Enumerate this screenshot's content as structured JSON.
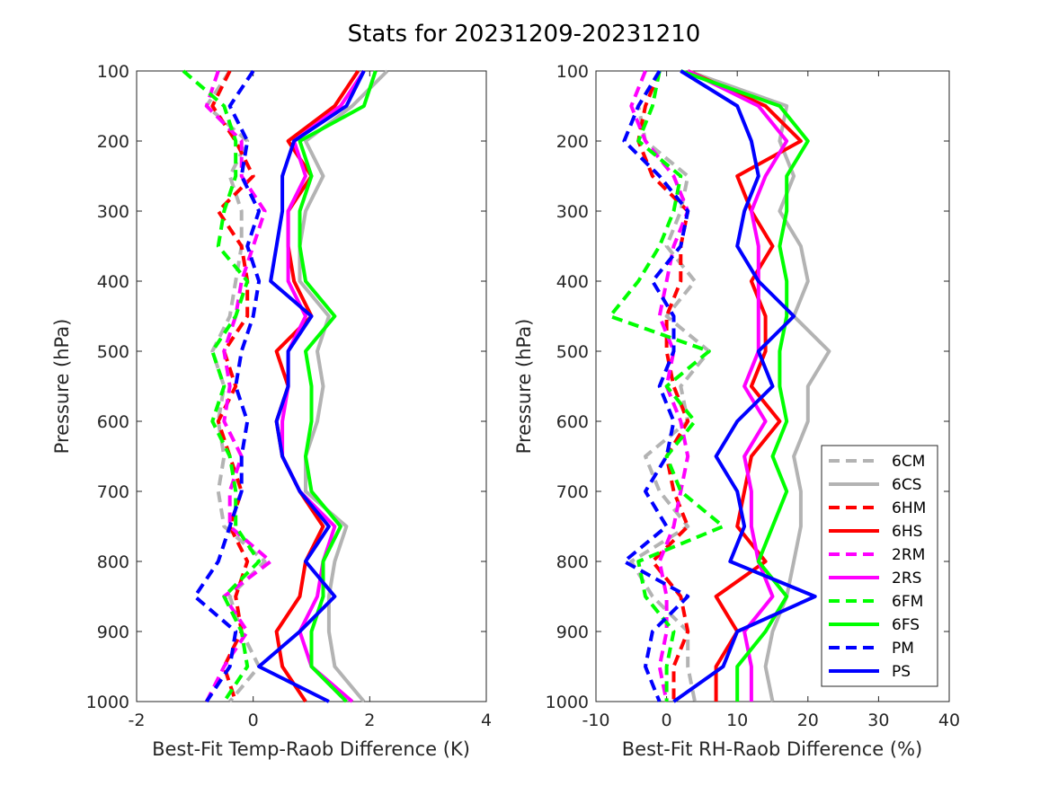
{
  "title": "Stats for 20231209-20231210",
  "legend": {
    "location": "bottom-right of right panel",
    "entries": [
      {
        "name": "6CM",
        "color": "#b3b3b3",
        "style": "dashed"
      },
      {
        "name": "6CS",
        "color": "#b3b3b3",
        "style": "solid"
      },
      {
        "name": "6HM",
        "color": "#ff0000",
        "style": "dashed"
      },
      {
        "name": "6HS",
        "color": "#ff0000",
        "style": "solid"
      },
      {
        "name": "2RM",
        "color": "#ff00ff",
        "style": "dashed"
      },
      {
        "name": "2RS",
        "color": "#ff00ff",
        "style": "solid"
      },
      {
        "name": "6FM",
        "color": "#00ff00",
        "style": "dashed"
      },
      {
        "name": "6FS",
        "color": "#00ff00",
        "style": "solid"
      },
      {
        "name": "PM",
        "color": "#0000ff",
        "style": "dashed"
      },
      {
        "name": "PS",
        "color": "#0000ff",
        "style": "solid"
      }
    ]
  },
  "chart_data": [
    {
      "type": "line",
      "xlabel": "Best-Fit Temp-Raob Difference (K)",
      "ylabel": "Pressure (hPa)",
      "xlim": [
        -2,
        4
      ],
      "ylim": [
        100,
        1000
      ],
      "y_reversed": true,
      "xticks": [
        "-2",
        "0",
        "2",
        "4"
      ],
      "yticks": [
        "100",
        "200",
        "300",
        "400",
        "500",
        "600",
        "700",
        "800",
        "900",
        "1000"
      ],
      "grid": false,
      "pressure": [
        100,
        150,
        200,
        250,
        300,
        350,
        400,
        450,
        500,
        550,
        600,
        650,
        700,
        750,
        800,
        850,
        900,
        950,
        1000
      ],
      "series": [
        {
          "name": "6CM",
          "values": [
            -0.4,
            -0.8,
            -0.1,
            -0.4,
            -0.2,
            -0.2,
            -0.3,
            -0.4,
            -0.7,
            -0.5,
            -0.6,
            -0.5,
            -0.6,
            -0.5,
            0.2,
            -0.4,
            -0.2,
            0.1,
            -0.4
          ]
        },
        {
          "name": "6CS",
          "values": [
            2.3,
            1.7,
            0.9,
            1.2,
            0.9,
            0.8,
            0.8,
            1.3,
            1.1,
            1.2,
            1.1,
            0.9,
            0.9,
            1.6,
            1.4,
            1.3,
            1.3,
            1.4,
            1.9
          ]
        },
        {
          "name": "6HM",
          "values": [
            -0.4,
            -0.7,
            -0.3,
            0.0,
            -0.6,
            -0.2,
            -0.1,
            -0.1,
            -0.5,
            -0.3,
            -0.6,
            -0.4,
            -0.2,
            -0.4,
            -0.1,
            -0.3,
            -0.2,
            -0.5,
            -0.3
          ]
        },
        {
          "name": "6HS",
          "values": [
            1.8,
            1.4,
            0.6,
            1.0,
            0.6,
            0.6,
            0.7,
            1.0,
            0.4,
            0.6,
            0.4,
            0.5,
            0.8,
            1.2,
            0.9,
            0.8,
            0.4,
            0.5,
            0.9
          ]
        },
        {
          "name": "2RM",
          "values": [
            -0.6,
            -0.8,
            -0.2,
            -0.2,
            0.2,
            0.0,
            -0.2,
            -0.3,
            -0.5,
            -0.4,
            -0.5,
            -0.2,
            -0.4,
            -0.4,
            0.3,
            -0.5,
            -0.1,
            -0.5,
            -0.8
          ]
        },
        {
          "name": "2RS",
          "values": [
            1.9,
            1.5,
            0.7,
            0.9,
            0.6,
            0.6,
            0.6,
            0.9,
            0.6,
            0.6,
            0.5,
            0.5,
            0.8,
            1.4,
            1.2,
            1.1,
            0.8,
            1.0,
            1.7
          ]
        },
        {
          "name": "6FM",
          "values": [
            -1.2,
            -0.5,
            -0.3,
            -0.3,
            -0.5,
            -0.6,
            -0.1,
            -0.3,
            -0.7,
            -0.5,
            -0.7,
            -0.4,
            -0.3,
            -0.3,
            0.1,
            -0.5,
            -0.2,
            -0.1,
            -0.5
          ]
        },
        {
          "name": "6FS",
          "values": [
            2.1,
            1.9,
            0.8,
            1.0,
            0.8,
            0.8,
            0.9,
            1.4,
            0.9,
            1.0,
            1.0,
            0.9,
            1.0,
            1.5,
            1.2,
            1.2,
            1.0,
            1.0,
            1.6
          ]
        },
        {
          "name": "PM",
          "values": [
            0.0,
            -0.4,
            -0.1,
            -0.2,
            0.1,
            -0.1,
            0.1,
            0.0,
            -0.2,
            -0.3,
            -0.1,
            -0.2,
            -0.2,
            -0.4,
            -0.6,
            -1.0,
            -0.3,
            -0.4,
            -0.8
          ]
        },
        {
          "name": "PS",
          "values": [
            1.9,
            1.6,
            0.7,
            0.5,
            0.5,
            0.4,
            0.3,
            1.0,
            0.6,
            0.6,
            0.4,
            0.5,
            0.8,
            1.3,
            0.9,
            1.4,
            0.8,
            0.1,
            1.3
          ]
        }
      ]
    },
    {
      "type": "line",
      "xlabel": "Best-Fit RH-Raob Difference (%)",
      "ylabel": "Pressure (hPa)",
      "xlim": [
        -10,
        40
      ],
      "ylim": [
        100,
        1000
      ],
      "y_reversed": true,
      "xticks": [
        "-10",
        "0",
        "10",
        "20",
        "30",
        "40"
      ],
      "yticks": [
        "100",
        "200",
        "300",
        "400",
        "500",
        "600",
        "700",
        "800",
        "900",
        "1000"
      ],
      "grid": false,
      "pressure": [
        100,
        150,
        200,
        250,
        300,
        350,
        400,
        450,
        500,
        550,
        600,
        650,
        700,
        750,
        800,
        850,
        900,
        950,
        1000
      ],
      "series": [
        {
          "name": "6CM",
          "values": [
            -1,
            -4,
            -3,
            3,
            2,
            0,
            4,
            0,
            6,
            2,
            3,
            -3,
            -1,
            3,
            -5,
            -2,
            3,
            3,
            4
          ]
        },
        {
          "name": "6CS",
          "values": [
            3,
            17,
            16,
            18,
            16,
            19,
            20,
            18,
            23,
            20,
            20,
            18,
            19,
            19,
            18,
            17,
            15,
            14,
            15
          ]
        },
        {
          "name": "6HM",
          "values": [
            -1,
            -3,
            -4,
            -2,
            3,
            2,
            2,
            0,
            0,
            1,
            3,
            0,
            1,
            3,
            -2,
            2,
            3,
            1,
            1
          ]
        },
        {
          "name": "6HS",
          "values": [
            3,
            14,
            19,
            10,
            12,
            15,
            12,
            14,
            14,
            12,
            16,
            12,
            11,
            10,
            14,
            7,
            10,
            7,
            7
          ]
        },
        {
          "name": "2RM",
          "values": [
            -3,
            -5,
            -3,
            1,
            3,
            1,
            0,
            -1,
            1,
            0,
            2,
            3,
            2,
            1,
            -1,
            0,
            0,
            -1,
            0
          ]
        },
        {
          "name": "2RS",
          "values": [
            3,
            13,
            17,
            14,
            12,
            13,
            13,
            13,
            13,
            11,
            14,
            11,
            12,
            12,
            13,
            15,
            11,
            12,
            12
          ]
        },
        {
          "name": "6FM",
          "values": [
            -1,
            -2,
            -4,
            2,
            1,
            -1,
            -4,
            -8,
            6,
            0,
            4,
            0,
            2,
            8,
            -4,
            -3,
            1,
            0,
            0
          ]
        },
        {
          "name": "6FS",
          "values": [
            2,
            16,
            20,
            17,
            17,
            16,
            17,
            17,
            16,
            16,
            17,
            15,
            17,
            15,
            13,
            17,
            14,
            10,
            10
          ]
        },
        {
          "name": "PM",
          "values": [
            -1,
            -4,
            -6,
            -1,
            3,
            2,
            -2,
            1,
            1,
            -1,
            1,
            0,
            -3,
            0,
            -6,
            3,
            -2,
            -3,
            -1
          ]
        },
        {
          "name": "PS",
          "values": [
            2,
            10,
            12,
            13,
            11,
            10,
            13,
            18,
            13,
            15,
            10,
            7,
            10,
            11,
            9,
            21,
            10,
            8,
            1
          ]
        }
      ]
    }
  ]
}
